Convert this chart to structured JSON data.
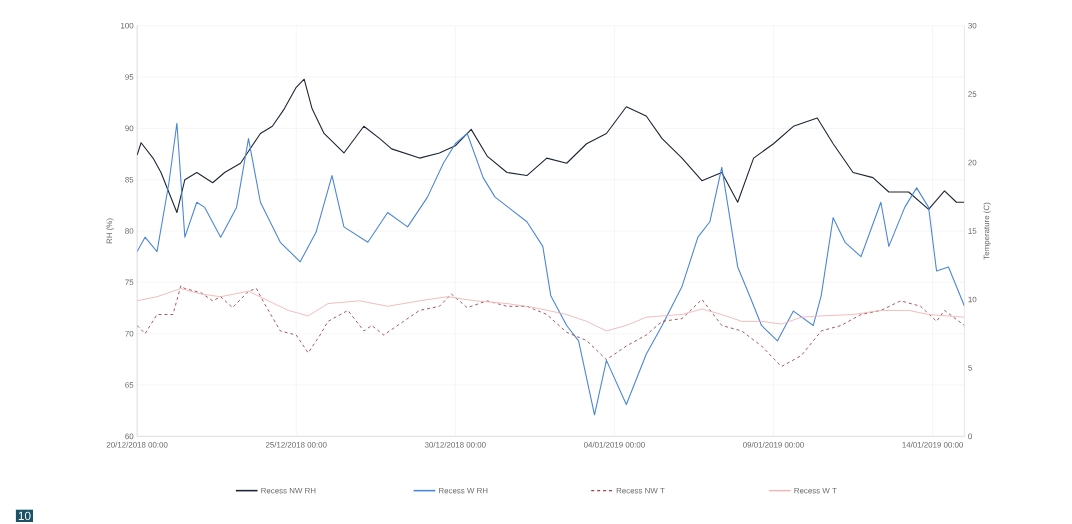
{
  "chart_data": {
    "type": "line",
    "ylabel": "RH (%)",
    "y2label": "Temperature (C)",
    "annotations": [
      "10"
    ],
    "xlim": [
      "2018-12-20T00:00",
      "2019-01-15T00:00"
    ],
    "xticks": [
      {
        "value": "2018-12-20T00:00",
        "label": "20/12/2018 00:00"
      },
      {
        "value": "2018-12-25T00:00",
        "label": "25/12/2018 00:00"
      },
      {
        "value": "2018-12-30T00:00",
        "label": "30/12/2018 00:00"
      },
      {
        "value": "2019-01-04T00:00",
        "label": "04/01/2019 00:00"
      },
      {
        "value": "2019-01-09T00:00",
        "label": "09/01/2019 00:00"
      },
      {
        "value": "2019-01-14T00:00",
        "label": "14/01/2019 00:00"
      }
    ],
    "ylim": [
      60,
      100
    ],
    "yticks": [
      60,
      65,
      70,
      75,
      80,
      85,
      90,
      95,
      100
    ],
    "y2lim": [
      0,
      30
    ],
    "y2ticks": [
      0,
      5,
      10,
      15,
      20,
      25,
      30
    ],
    "grid": true,
    "legend": "bottom",
    "marker": "none",
    "series": [
      {
        "name": "Recess NW RH",
        "color": "#1c2535",
        "axis": "y",
        "line_style": "solid",
        "x": [
          "2018-12-20T00:00",
          "2018-12-20T03:00",
          "2018-12-20T12:00",
          "2018-12-20T18:00",
          "2018-12-21T06:00",
          "2018-12-21T12:00",
          "2018-12-21T21:00",
          "2018-12-22T09:00",
          "2018-12-22T18:00",
          "2018-12-23T06:00",
          "2018-12-23T21:00",
          "2018-12-24T06:00",
          "2018-12-24T15:00",
          "2018-12-25T00:00",
          "2018-12-25T06:00",
          "2018-12-25T12:00",
          "2018-12-25T21:00",
          "2018-12-26T12:00",
          "2018-12-27T03:00",
          "2018-12-27T15:00",
          "2018-12-28T00:00",
          "2018-12-28T21:00",
          "2018-12-29T12:00",
          "2018-12-30T00:00",
          "2018-12-30T12:00",
          "2018-12-31T00:00",
          "2018-12-31T15:00",
          "2019-01-01T06:00",
          "2019-01-01T21:00",
          "2019-01-02T12:00",
          "2019-01-03T03:00",
          "2019-01-03T18:00",
          "2019-01-04T09:00",
          "2019-01-05T00:00",
          "2019-01-05T12:00",
          "2019-01-06T03:00",
          "2019-01-06T18:00",
          "2019-01-07T09:00",
          "2019-01-07T21:00",
          "2019-01-08T09:00",
          "2019-01-09T00:00",
          "2019-01-09T15:00",
          "2019-01-10T09:00",
          "2019-01-10T21:00",
          "2019-01-11T12:00",
          "2019-01-12T03:00",
          "2019-01-12T15:00",
          "2019-01-13T06:00",
          "2019-01-13T21:00",
          "2019-01-14T09:00",
          "2019-01-14T18:00",
          "2019-01-15T00:00"
        ],
        "values": [
          87.4,
          88.6,
          87.1,
          85.7,
          81.8,
          85,
          85.7,
          84.7,
          85.7,
          86.6,
          89.5,
          90.2,
          91.9,
          94,
          94.8,
          91.9,
          89.5,
          87.6,
          90.2,
          89,
          88,
          87.1,
          87.6,
          88.3,
          89.9,
          87.3,
          85.7,
          85.4,
          87.1,
          86.6,
          88.5,
          89.5,
          92.1,
          91.2,
          89,
          87.1,
          84.9,
          85.7,
          82.8,
          87.1,
          88.5,
          90.2,
          91,
          88.5,
          85.7,
          85.2,
          83.8,
          83.8,
          82.1,
          83.9,
          82.8,
          82.8
        ]
      },
      {
        "name": "Recess W RH",
        "color": "#4a86d8",
        "axis": "y",
        "line_style": "solid",
        "x": [
          "2018-12-20T00:00",
          "2018-12-20T06:00",
          "2018-12-20T15:00",
          "2018-12-21T00:00",
          "2018-12-21T06:00",
          "2018-12-21T12:00",
          "2018-12-21T21:00",
          "2018-12-22T03:00",
          "2018-12-22T15:00",
          "2018-12-23T03:00",
          "2018-12-23T12:00",
          "2018-12-23T21:00",
          "2018-12-24T12:00",
          "2018-12-25T03:00",
          "2018-12-25T15:00",
          "2018-12-26T03:00",
          "2018-12-26T12:00",
          "2018-12-27T06:00",
          "2018-12-27T21:00",
          "2018-12-28T12:00",
          "2018-12-29T03:00",
          "2018-12-29T15:00",
          "2018-12-30T00:00",
          "2018-12-30T09:00",
          "2018-12-30T21:00",
          "2018-12-31T06:00",
          "2019-01-01T06:00",
          "2019-01-01T18:00",
          "2019-01-02T00:00",
          "2019-01-02T12:00",
          "2019-01-02T21:00",
          "2019-01-03T09:00",
          "2019-01-03T18:00",
          "2019-01-04T09:00",
          "2019-01-05T00:00",
          "2019-01-05T12:00",
          "2019-01-06T03:00",
          "2019-01-06T15:00",
          "2019-01-07T00:00",
          "2019-01-07T09:00",
          "2019-01-07T21:00",
          "2019-01-08T06:00",
          "2019-01-08T15:00",
          "2019-01-09T03:00",
          "2019-01-09T15:00",
          "2019-01-10T06:00",
          "2019-01-10T12:00",
          "2019-01-10T21:00",
          "2019-01-11T06:00",
          "2019-01-11T18:00",
          "2019-01-12T09:00",
          "2019-01-12T15:00",
          "2019-01-13T03:00",
          "2019-01-13T12:00",
          "2019-01-13T21:00",
          "2019-01-14T03:00",
          "2019-01-14T12:00",
          "2019-01-15T00:00"
        ],
        "values": [
          78,
          79.4,
          78,
          84.7,
          90.5,
          79.4,
          82.8,
          82.3,
          79.4,
          82.3,
          89,
          82.8,
          78.9,
          77,
          79.9,
          85.4,
          80.4,
          78.9,
          81.8,
          80.4,
          83.3,
          86.6,
          88.5,
          89.5,
          85.2,
          83.3,
          80.9,
          78.5,
          73.7,
          70.8,
          69.3,
          62.1,
          67.4,
          63.1,
          68,
          70.8,
          74.6,
          79.4,
          80.9,
          86.2,
          76.5,
          73.7,
          70.8,
          69.3,
          72.2,
          70.8,
          73.7,
          81.3,
          78.9,
          77.5,
          82.8,
          78.5,
          82.3,
          84.2,
          82.3,
          76.1,
          76.5,
          72.7
        ]
      },
      {
        "name": "Recess NW T",
        "color": "#a0424a",
        "axis": "y2",
        "line_style": "dashed",
        "x": [
          "2018-12-20T00:00",
          "2018-12-20T06:00",
          "2018-12-20T15:00",
          "2018-12-21T03:00",
          "2018-12-21T09:00",
          "2018-12-21T12:00",
          "2018-12-22T00:00",
          "2018-12-22T09:00",
          "2018-12-22T15:00",
          "2018-12-23T00:00",
          "2018-12-23T12:00",
          "2018-12-23T18:00",
          "2018-12-24T00:00",
          "2018-12-24T12:00",
          "2018-12-25T00:00",
          "2018-12-25T09:00",
          "2018-12-25T18:00",
          "2018-12-26T00:00",
          "2018-12-26T15:00",
          "2018-12-27T03:00",
          "2018-12-27T09:00",
          "2018-12-27T18:00",
          "2018-12-28T09:00",
          "2018-12-28T21:00",
          "2018-12-29T12:00",
          "2018-12-29T21:00",
          "2018-12-30T09:00",
          "2018-12-31T00:00",
          "2018-12-31T15:00",
          "2019-01-01T06:00",
          "2019-01-01T21:00",
          "2019-01-02T12:00",
          "2019-01-03T03:00",
          "2019-01-03T18:00",
          "2019-01-04T09:00",
          "2019-01-05T00:00",
          "2019-01-05T12:00",
          "2019-01-06T03:00",
          "2019-01-06T18:00",
          "2019-01-07T09:00",
          "2019-01-08T00:00",
          "2019-01-08T15:00",
          "2019-01-09T06:00",
          "2019-01-09T21:00",
          "2019-01-10T12:00",
          "2019-01-11T03:00",
          "2019-01-11T18:00",
          "2019-01-12T09:00",
          "2019-01-13T00:00",
          "2019-01-13T15:00",
          "2019-01-14T03:00",
          "2019-01-14T09:00",
          "2019-01-15T00:00"
        ],
        "values": [
          8.1,
          7.5,
          8.9,
          8.9,
          11,
          10.8,
          10.5,
          9.9,
          10.2,
          9.4,
          10.6,
          10.8,
          9.7,
          7.7,
          7.4,
          6.1,
          7.4,
          8.4,
          9.2,
          7.7,
          8.1,
          7.4,
          8.4,
          9.2,
          9.5,
          10.4,
          9.4,
          9.9,
          9.5,
          9.5,
          8.9,
          7.6,
          7,
          5.6,
          6.6,
          7.4,
          8.4,
          8.6,
          10,
          8.1,
          7.7,
          6.6,
          5.1,
          5.9,
          7.7,
          8.1,
          8.9,
          9.2,
          9.9,
          9.5,
          8.4,
          9.2,
          8.1
        ]
      },
      {
        "name": "Recess W T",
        "color": "#f0b4b4",
        "axis": "y2",
        "line_style": "solid",
        "x": [
          "2018-12-20T00:00",
          "2018-12-20T15:00",
          "2018-12-21T09:00",
          "2018-12-22T00:00",
          "2018-12-22T15:00",
          "2018-12-23T12:00",
          "2018-12-24T03:00",
          "2018-12-24T18:00",
          "2018-12-25T09:00",
          "2018-12-26T00:00",
          "2018-12-27T00:00",
          "2018-12-27T21:00",
          "2018-12-28T21:00",
          "2018-12-29T18:00",
          "2018-12-30T15:00",
          "2018-12-31T15:00",
          "2019-01-01T12:00",
          "2019-01-02T12:00",
          "2019-01-03T03:00",
          "2019-01-03T18:00",
          "2019-01-04T09:00",
          "2019-01-05T00:00",
          "2019-01-05T12:00",
          "2019-01-06T03:00",
          "2019-01-06T18:00",
          "2019-01-07T09:00",
          "2019-01-08T00:00",
          "2019-01-08T15:00",
          "2019-01-09T06:00",
          "2019-01-09T21:00",
          "2019-01-10T12:00",
          "2019-01-11T12:00",
          "2019-01-12T09:00",
          "2019-01-13T06:00",
          "2019-01-13T21:00",
          "2019-01-15T00:00"
        ],
        "values": [
          9.9,
          10.2,
          10.8,
          10.4,
          10.2,
          10.6,
          9.9,
          9.2,
          8.8,
          9.7,
          9.9,
          9.5,
          9.9,
          10.2,
          9.9,
          9.7,
          9.4,
          8.9,
          8.4,
          7.7,
          8.1,
          8.7,
          8.8,
          8.9,
          9.3,
          8.9,
          8.4,
          8.4,
          8.2,
          8.7,
          8.8,
          8.9,
          9.2,
          9.2,
          8.9,
          8.7
        ]
      }
    ]
  }
}
